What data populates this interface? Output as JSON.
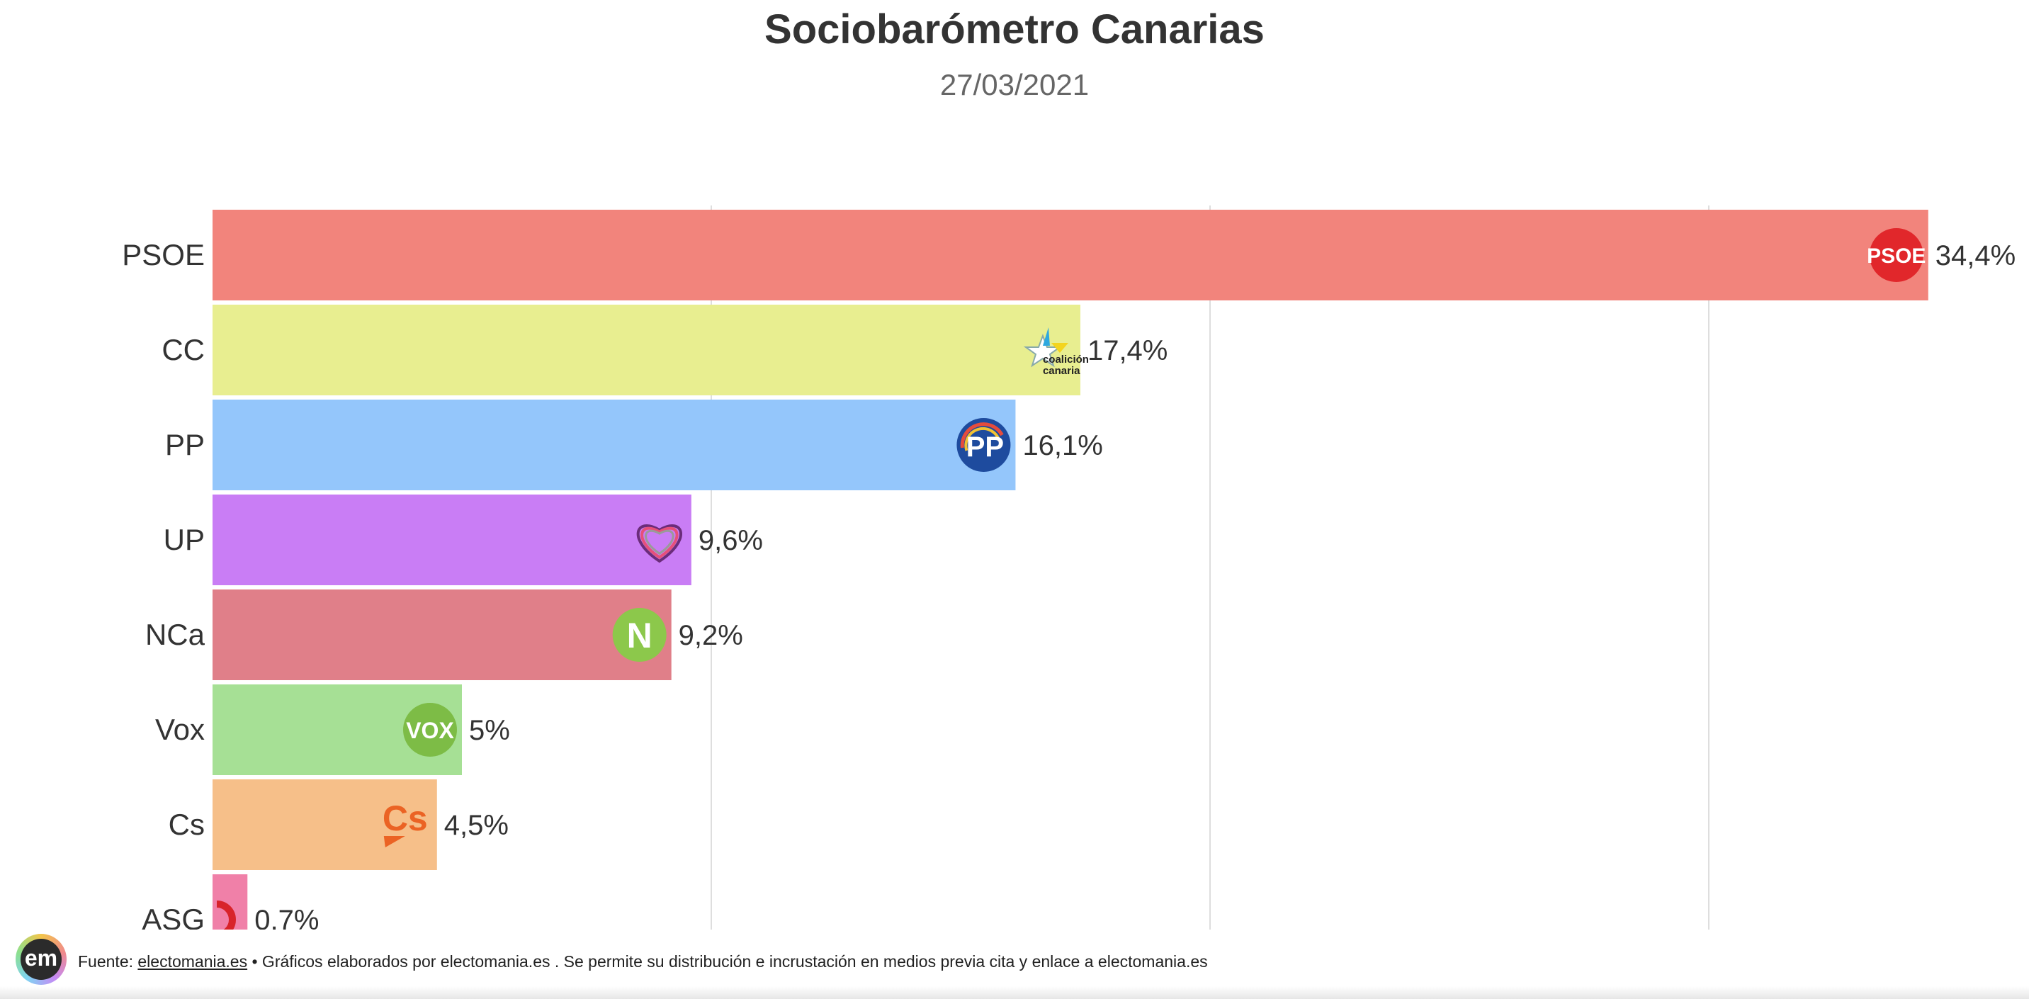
{
  "chart_data": {
    "type": "bar",
    "orientation": "horizontal",
    "title": "Sociobarómetro Canarias",
    "subtitle": "27/03/2021",
    "categories": [
      "PSOE",
      "CC",
      "PP",
      "UP",
      "NCa",
      "Vox",
      "Cs",
      "ASG"
    ],
    "values": [
      34.4,
      17.4,
      16.1,
      9.6,
      9.2,
      5,
      4.5,
      0.7
    ],
    "value_labels": [
      "34,4%",
      "17,4%",
      "16,1%",
      "9,6%",
      "9,2%",
      "5%",
      "4,5%",
      "0,7%"
    ],
    "colors": [
      "#f2847c",
      "#e8ee90",
      "#94c6fb",
      "#c97df5",
      "#e07f89",
      "#a6e095",
      "#f6bf89",
      "#f080a8"
    ],
    "logos": [
      "psoe-logo",
      "coalicion-canaria-logo",
      "pp-logo",
      "up-heart-logo",
      "nca-logo",
      "vox-logo",
      "cs-logo",
      "asg-logo"
    ],
    "logo_texts": {
      "psoe": "PSOE",
      "cc_line1": "coalición",
      "cc_line2": "canaria",
      "pp": "PP",
      "nca": "N",
      "vox": "VOX",
      "cs": "Cs"
    },
    "xlim": [
      0,
      35
    ],
    "gridlines_at": [
      10,
      20,
      30
    ],
    "xlabel": "",
    "ylabel": ""
  },
  "footer": {
    "logo_text": "em",
    "prefix": "Fuente: ",
    "source_link": "electomania.es",
    "text": " • Gráficos elaborados por electomania.es . Se permite su distribución e incrustación en medios previa cita y enlace a electomania.es"
  }
}
